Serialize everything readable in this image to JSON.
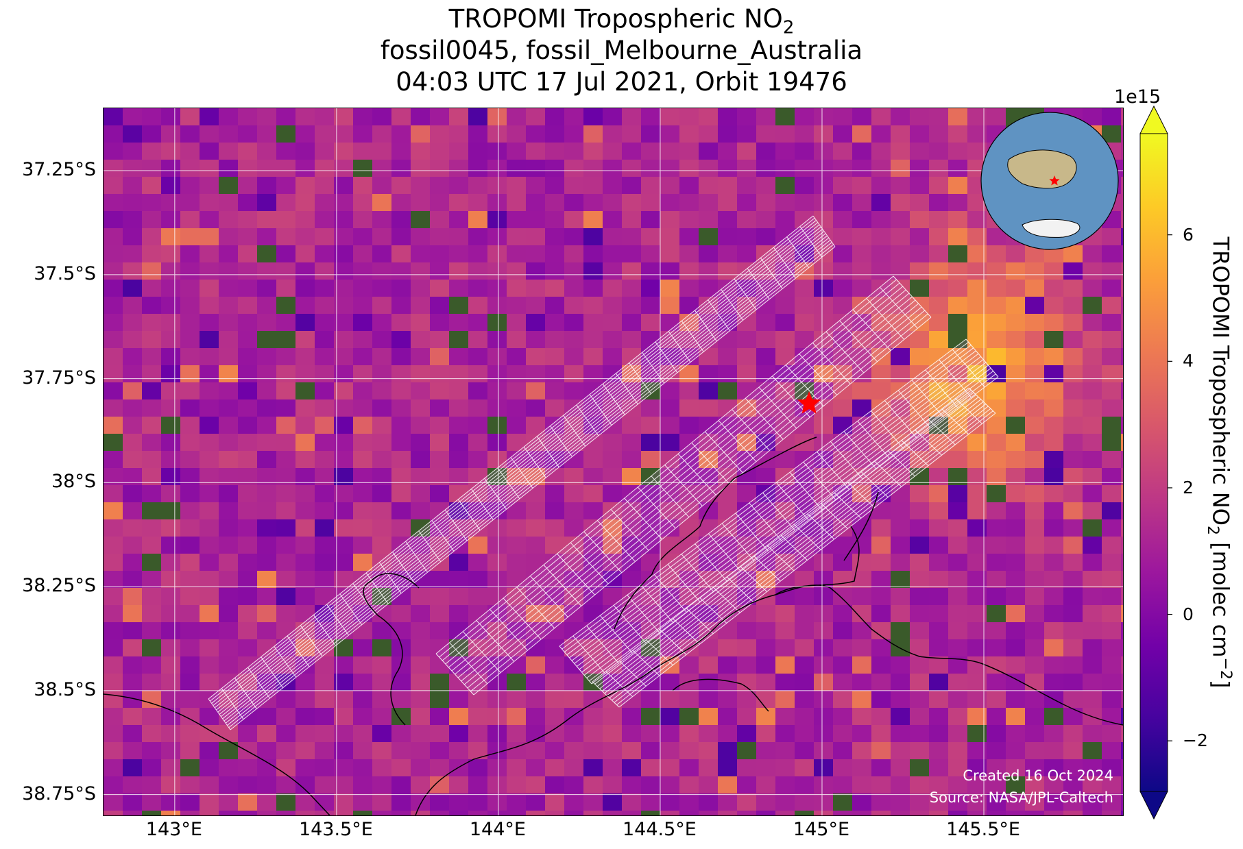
{
  "title": {
    "line1": "TROPOMI Tropospheric NO",
    "line1_sub": "2",
    "line2": "fossil0045, fossil_Melbourne_Australia",
    "line3": "04:03 UTC 17 Jul 2021, Orbit 19476"
  },
  "map": {
    "lon_range": [
      142.78,
      145.93
    ],
    "lat_range": [
      -38.8,
      -37.1
    ],
    "lat_ticks": [
      {
        "value": -37.25,
        "label": "37.25°S"
      },
      {
        "value": -37.5,
        "label": "37.5°S"
      },
      {
        "value": -37.75,
        "label": "37.75°S"
      },
      {
        "value": -38.0,
        "label": "38°S"
      },
      {
        "value": -38.25,
        "label": "38.25°S"
      },
      {
        "value": -38.5,
        "label": "38.5°S"
      },
      {
        "value": -38.75,
        "label": "38.75°S"
      }
    ],
    "lon_ticks": [
      {
        "value": 143.0,
        "label": "143°E"
      },
      {
        "value": 143.5,
        "label": "143.5°E"
      },
      {
        "value": 144.0,
        "label": "144°E"
      },
      {
        "value": 144.5,
        "label": "144.5°E"
      },
      {
        "value": 145.0,
        "label": "145°E"
      },
      {
        "value": 145.5,
        "label": "145.5°E"
      }
    ],
    "target_marker": {
      "lon": 144.96,
      "lat": -37.81,
      "color": "#ff0000",
      "icon": "star-icon"
    },
    "grid": true,
    "inset_globe": {
      "icon": "globe-icon",
      "location": "top-right"
    },
    "credit_line1": "Created 16 Oct 2024",
    "credit_line2": "Source: NASA/JPL-Caltech"
  },
  "colorbar": {
    "exponent": "1e15",
    "label": "TROPOMI Tropospheric NO",
    "label_sub": "2",
    "label_rest": " [molec cm",
    "label_sup": "−2",
    "label_end": "]",
    "vmin": -2.8,
    "vmax": 7.6,
    "cmap": "plasma",
    "ticks": [
      {
        "value": -2,
        "label": "−2"
      },
      {
        "value": 0,
        "label": "0"
      },
      {
        "value": 2,
        "label": "2"
      },
      {
        "value": 4,
        "label": "4"
      },
      {
        "value": 6,
        "label": "6"
      }
    ]
  },
  "colors": {
    "cmap_stops": [
      "#0d0887",
      "#46039f",
      "#7201a8",
      "#9c179e",
      "#bd3786",
      "#d8576b",
      "#ed7953",
      "#fb9f3a",
      "#fdca26",
      "#f0f921"
    ],
    "swath_outline": "#ffffff",
    "coastline": "#000000",
    "grid": "#ffffff"
  }
}
